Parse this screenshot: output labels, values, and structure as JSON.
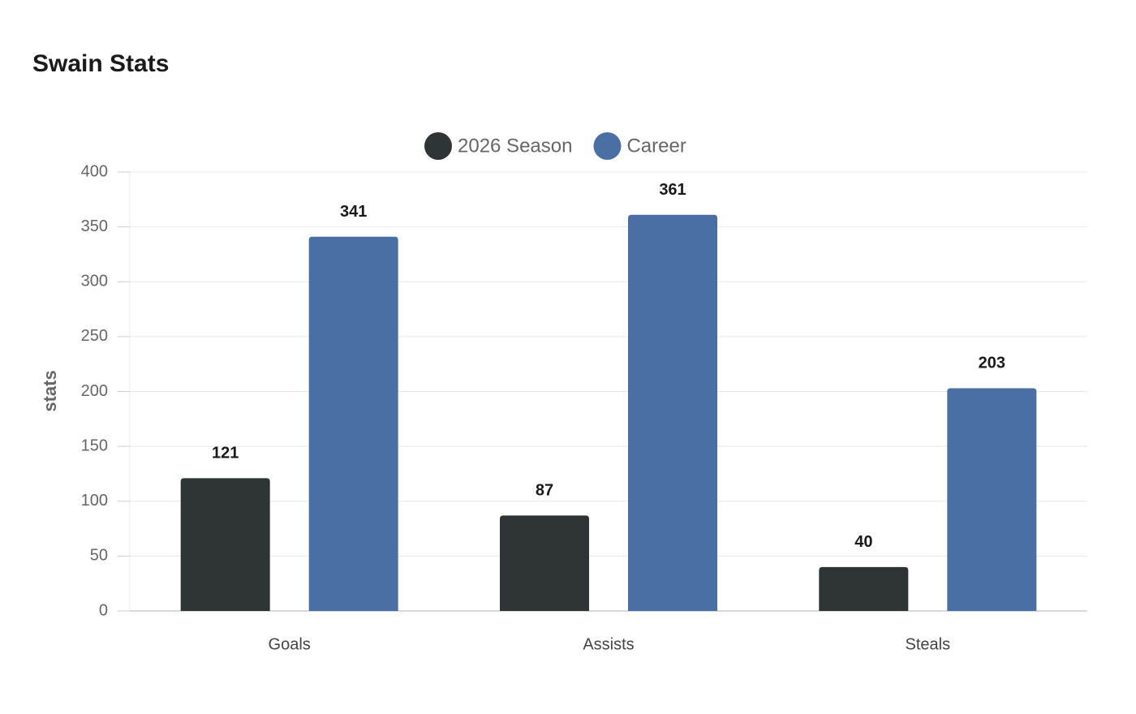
{
  "chart_data": {
    "type": "bar",
    "title": "Swain Stats",
    "y_label": "stats",
    "categories": [
      "Goals",
      "Assists",
      "Steals"
    ],
    "series": [
      {
        "name": "2026 Season",
        "color": "#2e3436",
        "values": [
          121,
          87,
          40
        ]
      },
      {
        "name": "Career",
        "color": "#4a6fa5",
        "values": [
          341,
          361,
          203
        ]
      }
    ],
    "ylim": [
      0,
      400
    ],
    "yticks": [
      0,
      50,
      100,
      150,
      200,
      250,
      300,
      350,
      400
    ],
    "grid": true,
    "legend": "top"
  }
}
